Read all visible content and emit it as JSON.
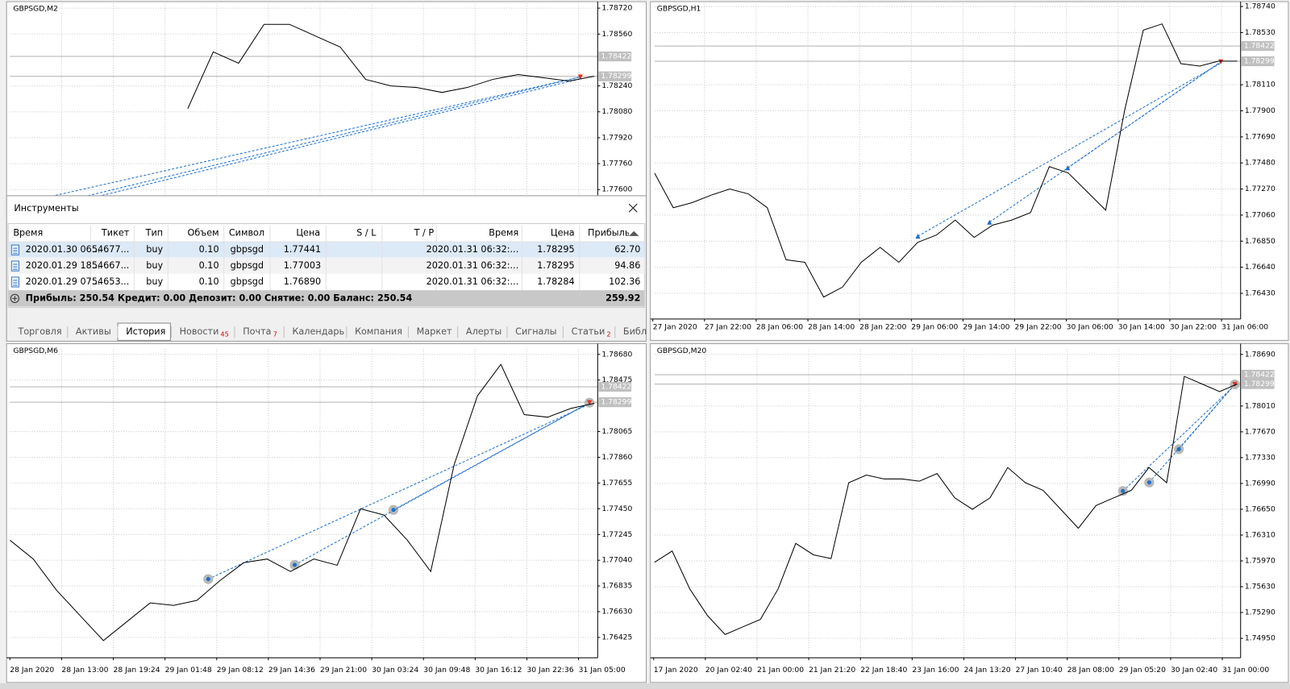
{
  "charts": [
    {
      "type": "line",
      "title": "GBPSGD,M2",
      "grid": true,
      "ylim": [
        1.7674,
        1.7875
      ],
      "yticks": [
        {
          "value": 1.7872,
          "label": "1.78720"
        },
        {
          "value": 1.7856,
          "label": "1.78560"
        },
        {
          "value": 1.7824,
          "label": "1.78240"
        },
        {
          "value": 1.7808,
          "label": "1.78080"
        },
        {
          "value": 1.7792,
          "label": "1.77920"
        },
        {
          "value": 1.7776,
          "label": "1.77760"
        },
        {
          "value": 1.776,
          "label": "1.77600"
        }
      ],
      "levels": [
        1.78422,
        1.78299
      ],
      "values": [
        null,
        null,
        null,
        null,
        null,
        null,
        null,
        1.781,
        1.7845,
        1.7838,
        1.7862,
        1.7862,
        1.7855,
        1.7848,
        1.7828,
        1.7824,
        1.7823,
        1.782,
        1.7823,
        1.7828,
        1.7831,
        1.7829,
        1.7827,
        1.783
      ]
    },
    {
      "type": "line",
      "title": "GBPSGD,H1",
      "grid": true,
      "ylim": [
        1.76223,
        1.78766
      ],
      "yticks": [
        {
          "value": 1.7874,
          "label": "1.78740"
        },
        {
          "value": 1.7853,
          "label": "1.78530"
        },
        {
          "value": 1.7811,
          "label": "1.78110"
        },
        {
          "value": 1.779,
          "label": "1.77900"
        },
        {
          "value": 1.7769,
          "label": "1.77690"
        },
        {
          "value": 1.7748,
          "label": "1.77480"
        },
        {
          "value": 1.7727,
          "label": "1.77270"
        },
        {
          "value": 1.7706,
          "label": "1.77060"
        },
        {
          "value": 1.7685,
          "label": "1.76850"
        },
        {
          "value": 1.7664,
          "label": "1.76640"
        },
        {
          "value": 1.7643,
          "label": "1.76430"
        }
      ],
      "levels": [
        1.78422,
        1.78299
      ],
      "x_labels": [
        "27 Jan 2020",
        "27 Jan 22:00",
        "28 Jan 06:00",
        "28 Jan 14:00",
        "28 Jan 22:00",
        "29 Jan 06:00",
        "29 Jan 14:00",
        "29 Jan 22:00",
        "30 Jan 06:00",
        "30 Jan 14:00",
        "30 Jan 22:00",
        "31 Jan 06:00"
      ],
      "values": [
        1.774,
        1.7712,
        1.7716,
        1.7722,
        1.7727,
        1.7723,
        1.7712,
        1.767,
        1.7668,
        1.764,
        1.7648,
        1.7668,
        1.768,
        1.7668,
        1.7684,
        1.769,
        1.7702,
        1.7688,
        1.7698,
        1.7702,
        1.7708,
        1.7745,
        1.774,
        1.7725,
        1.771,
        1.779,
        1.7855,
        1.786,
        1.7828,
        1.7826,
        1.783,
        1.783
      ]
    },
    {
      "type": "line",
      "title": "GBPSGD,M6",
      "grid": true,
      "ylim": [
        1.76263,
        1.78726
      ],
      "yticks": [
        {
          "value": 1.7868,
          "label": "1.78680"
        },
        1.78475,
        1.78065,
        {
          "value": 1.7786,
          "label": "1.77860"
        },
        1.77655,
        {
          "value": 1.7745,
          "label": "1.77450"
        },
        1.77245,
        {
          "value": 1.7704,
          "label": "1.77040"
        },
        1.76835,
        {
          "value": 1.7663,
          "label": "1.76630"
        },
        1.76425
      ],
      "levels": [
        1.78422,
        1.78299
      ],
      "x_labels": [
        "28 Jan 2020",
        "28 Jan 13:00",
        "28 Jan 19:24",
        "29 Jan 01:48",
        "29 Jan 08:12",
        "29 Jan 14:36",
        "29 Jan 21:00",
        "30 Jan 03:24",
        "30 Jan 09:48",
        "30 Jan 16:12",
        "30 Jan 22:36",
        "31 Jan 05:00"
      ],
      "values": [
        1.772,
        1.7705,
        1.768,
        1.766,
        1.764,
        1.7655,
        1.767,
        1.7668,
        1.7672,
        1.7688,
        1.7702,
        1.7705,
        1.7695,
        1.7705,
        1.77,
        1.7745,
        1.774,
        1.772,
        1.7695,
        1.778,
        1.7835,
        1.786,
        1.782,
        1.7818,
        1.7825,
        1.7829
      ]
    },
    {
      "type": "line",
      "title": "GBPSGD,M20",
      "grid": true,
      "ylim": [
        1.74694,
        1.78766
      ],
      "yticks": [
        {
          "value": 1.7869,
          "label": "1.78690"
        },
        {
          "value": 1.7801,
          "label": "1.78010"
        },
        {
          "value": 1.7767,
          "label": "1.77670"
        },
        {
          "value": 1.7733,
          "label": "1.77330"
        },
        {
          "value": 1.7699,
          "label": "1.76990"
        },
        {
          "value": 1.7665,
          "label": "1.76650"
        },
        {
          "value": 1.7631,
          "label": "1.76310"
        },
        {
          "value": 1.7597,
          "label": "1.75970"
        },
        {
          "value": 1.7563,
          "label": "1.75630"
        },
        {
          "value": 1.7529,
          "label": "1.75290"
        },
        {
          "value": 1.7495,
          "label": "1.74950"
        }
      ],
      "levels": [
        1.78422,
        1.78299
      ],
      "x_labels": [
        "17 Jan 2020",
        "20 Jan 02:40",
        "21 Jan 00:00",
        "21 Jan 21:20",
        "22 Jan 18:40",
        "23 Jan 16:00",
        "24 Jan 13:20",
        "27 Jan 10:40",
        "28 Jan 08:00",
        "29 Jan 05:20",
        "30 Jan 02:40",
        "31 Jan 00:00"
      ],
      "values": [
        1.7595,
        1.761,
        1.756,
        1.7525,
        1.75,
        1.751,
        1.752,
        1.756,
        1.762,
        1.7605,
        1.76,
        1.77,
        1.771,
        1.7705,
        1.7705,
        1.7702,
        1.7712,
        1.768,
        1.7665,
        1.768,
        1.772,
        1.77,
        1.769,
        1.7665,
        1.764,
        1.767,
        1.768,
        1.769,
        1.772,
        1.77,
        1.784,
        1.783,
        1.782,
        1.783
      ]
    }
  ],
  "tools": {
    "title": "Инструменты",
    "columns": [
      "Время",
      "Тикет",
      "Тип",
      "Объем",
      "Символ",
      "Цена",
      "S / L",
      "T / P",
      "Время",
      "Цена",
      "Прибыль"
    ],
    "rows": [
      [
        "2020.01.30 06...",
        "54677...",
        "buy",
        "0.10",
        "gbpsgd",
        "1.77441",
        null,
        null,
        "2020.01.31 06:32:...",
        "1.78295",
        "62.70"
      ],
      [
        "2020.01.29 18...",
        "54667...",
        "buy",
        "0.10",
        "gbpsgd",
        "1.77003",
        null,
        null,
        "2020.01.31 06:32:...",
        "1.78295",
        "94.86"
      ],
      [
        "2020.01.29 07...",
        "54653...",
        "buy",
        "0.10",
        "gbpsgd",
        "1.76890",
        null,
        null,
        "2020.01.31 06:32:...",
        "1.78284",
        "102.36"
      ]
    ],
    "summary": "Прибыль: 250.54  Кредит: 0.00  Депозит: 0.00  Снятие: 0.00  Баланс: 250.54",
    "summary_total": "259.92",
    "tabs": [
      {
        "label": "Торговля"
      },
      {
        "label": "Активы"
      },
      {
        "label": "История",
        "active": true
      },
      {
        "label": "Новости",
        "badge": "45"
      },
      {
        "label": "Почта",
        "badge": "7"
      },
      {
        "label": "Календарь"
      },
      {
        "label": "Компания"
      },
      {
        "label": "Маркет"
      },
      {
        "label": "Алерты"
      },
      {
        "label": "Сигналы"
      },
      {
        "label": "Статьи",
        "badge": "2"
      },
      {
        "label": "Библ"
      }
    ]
  }
}
